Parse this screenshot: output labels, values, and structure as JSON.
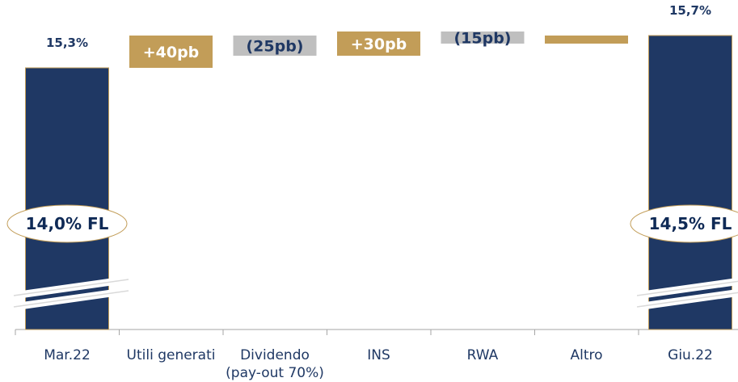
{
  "chart_data": {
    "type": "bar",
    "subtype": "waterfall",
    "categories": [
      "Mar.22",
      "Utili generati",
      "Dividendo",
      "INS",
      "RWA",
      "Altro",
      "Giu.22"
    ],
    "category_lines": [
      [
        "Mar.22"
      ],
      [
        "Utili generati"
      ],
      [
        "Dividendo",
        "(pay-out 70%)"
      ],
      [
        "INS"
      ],
      [
        "RWA"
      ],
      [
        "Altro"
      ],
      [
        "Giu.22"
      ]
    ],
    "values_pct": [
      15.3,
      0.4,
      -0.25,
      0.3,
      -0.15,
      0.1,
      15.7
    ],
    "bar_kinds": [
      "total",
      "increase",
      "decrease",
      "increase",
      "decrease",
      "increase",
      "total"
    ],
    "labels": [
      "15,3%",
      "+40pb",
      "(25pb)",
      "+30pb",
      "(15pb)",
      "",
      "15,7%"
    ],
    "fully_loaded": [
      {
        "category": "Mar.22",
        "label": "14,0% FL"
      },
      {
        "category": "Giu.22",
        "label": "14,5% FL"
      }
    ],
    "axis_break": true,
    "colors": {
      "total": "#1f3864",
      "increase": "#c29d58",
      "decrease": "#bfbfbf",
      "total_text": "#1f3864",
      "increase_text": "#ffffff",
      "decrease_text": "#1f3864",
      "ellipse_border": "#c29d58"
    }
  }
}
